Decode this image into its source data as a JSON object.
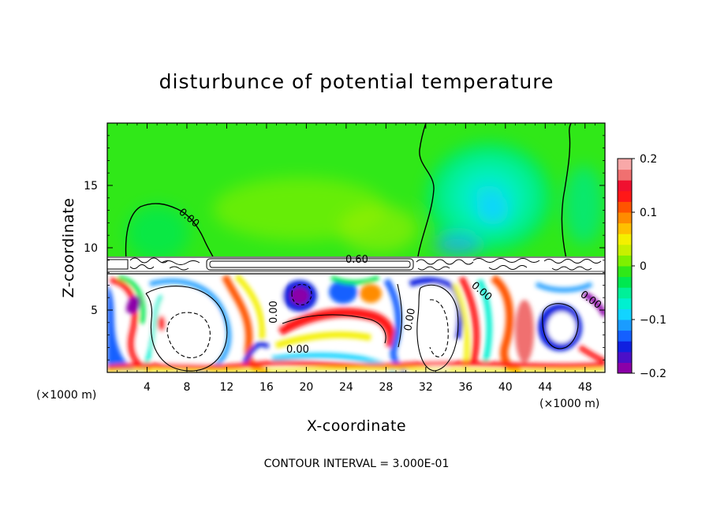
{
  "chart_data": {
    "type": "heatmap",
    "title": "disturbunce of potential temperature",
    "xlabel": "X-coordinate",
    "ylabel": "Z-coordinate",
    "x_unit_label_left": "(×1000 m)",
    "x_unit_label_right": "(×1000 m)",
    "xlim": [
      0,
      50
    ],
    "ylim": [
      0,
      20
    ],
    "x_ticks": [
      4,
      8,
      12,
      16,
      20,
      24,
      28,
      32,
      36,
      40,
      44,
      48
    ],
    "y_ticks": [
      5,
      10,
      15
    ],
    "colorbar": {
      "min": -0.2,
      "max": 0.2,
      "ticks": [
        0.2,
        0.1,
        0,
        -0.1,
        -0.2
      ],
      "colors": [
        "#8b00a8",
        "#4b0fc8",
        "#1020e0",
        "#1460ff",
        "#1a9cff",
        "#12d4ff",
        "#00f0d0",
        "#00f098",
        "#00e850",
        "#30e818",
        "#7ef000",
        "#c8f000",
        "#f4f000",
        "#ffc000",
        "#ff8c00",
        "#ff5400",
        "#ff1818",
        "#f01030",
        "#f07070",
        "#f8a8a8"
      ]
    },
    "contour_labels": [
      "0.00",
      "0.60",
      "0.00",
      "0.00",
      "0.00",
      "0.00",
      "0.00"
    ],
    "footer": "CONTOUR INTERVAL = 3.000E-01",
    "grid": false
  }
}
